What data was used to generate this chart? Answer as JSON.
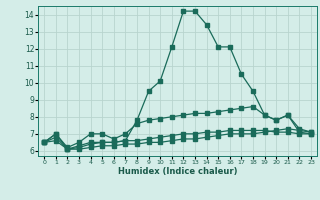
{
  "xlabel": "Humidex (Indice chaleur)",
  "bg_color": "#d4ede8",
  "grid_color": "#b8d4ce",
  "line_color": "#1a6b5a",
  "xlim": [
    -0.5,
    23.5
  ],
  "ylim": [
    5.7,
    14.5
  ],
  "xticks": [
    0,
    1,
    2,
    3,
    4,
    5,
    6,
    7,
    8,
    9,
    10,
    11,
    12,
    13,
    14,
    15,
    16,
    17,
    18,
    19,
    20,
    21,
    22,
    23
  ],
  "yticks": [
    6,
    7,
    8,
    9,
    10,
    11,
    12,
    13,
    14
  ],
  "line1_x": [
    0,
    1,
    2,
    3,
    4,
    5,
    6,
    7,
    8,
    9,
    10,
    11,
    12,
    13,
    14,
    15,
    16,
    17,
    18,
    19,
    20,
    21,
    22,
    23
  ],
  "line1_y": [
    6.5,
    7.0,
    6.1,
    6.3,
    6.5,
    6.5,
    6.5,
    6.6,
    7.8,
    9.5,
    10.1,
    12.1,
    14.2,
    14.2,
    13.4,
    12.1,
    12.1,
    10.5,
    9.5,
    8.1,
    7.8,
    8.1,
    7.1,
    7.0
  ],
  "line2_x": [
    0,
    1,
    2,
    3,
    4,
    5,
    6,
    7,
    8,
    9,
    10,
    11,
    12,
    13,
    14,
    15,
    16,
    17,
    18,
    19,
    20,
    21,
    22,
    23
  ],
  "line2_y": [
    6.5,
    7.0,
    6.2,
    6.5,
    7.0,
    7.0,
    6.7,
    7.0,
    7.6,
    7.8,
    7.9,
    8.0,
    8.1,
    8.2,
    8.2,
    8.3,
    8.4,
    8.5,
    8.6,
    8.1,
    7.8,
    8.1,
    7.3,
    7.1
  ],
  "line3_x": [
    0,
    1,
    2,
    3,
    4,
    5,
    6,
    7,
    8,
    9,
    10,
    11,
    12,
    13,
    14,
    15,
    16,
    17,
    18,
    19,
    20,
    21,
    22,
    23
  ],
  "line3_y": [
    6.5,
    6.8,
    6.1,
    6.2,
    6.4,
    6.5,
    6.5,
    6.6,
    6.6,
    6.7,
    6.8,
    6.9,
    7.0,
    7.0,
    7.1,
    7.1,
    7.2,
    7.2,
    7.2,
    7.2,
    7.1,
    7.1,
    7.0,
    7.0
  ],
  "line4_x": [
    0,
    1,
    2,
    3,
    4,
    5,
    6,
    7,
    8,
    9,
    10,
    11,
    12,
    13,
    14,
    15,
    16,
    17,
    18,
    19,
    20,
    21,
    22,
    23
  ],
  "line4_y": [
    6.5,
    6.6,
    6.1,
    6.1,
    6.2,
    6.3,
    6.3,
    6.4,
    6.4,
    6.5,
    6.5,
    6.6,
    6.7,
    6.7,
    6.8,
    6.9,
    7.0,
    7.0,
    7.0,
    7.1,
    7.2,
    7.3,
    7.2,
    7.1
  ]
}
